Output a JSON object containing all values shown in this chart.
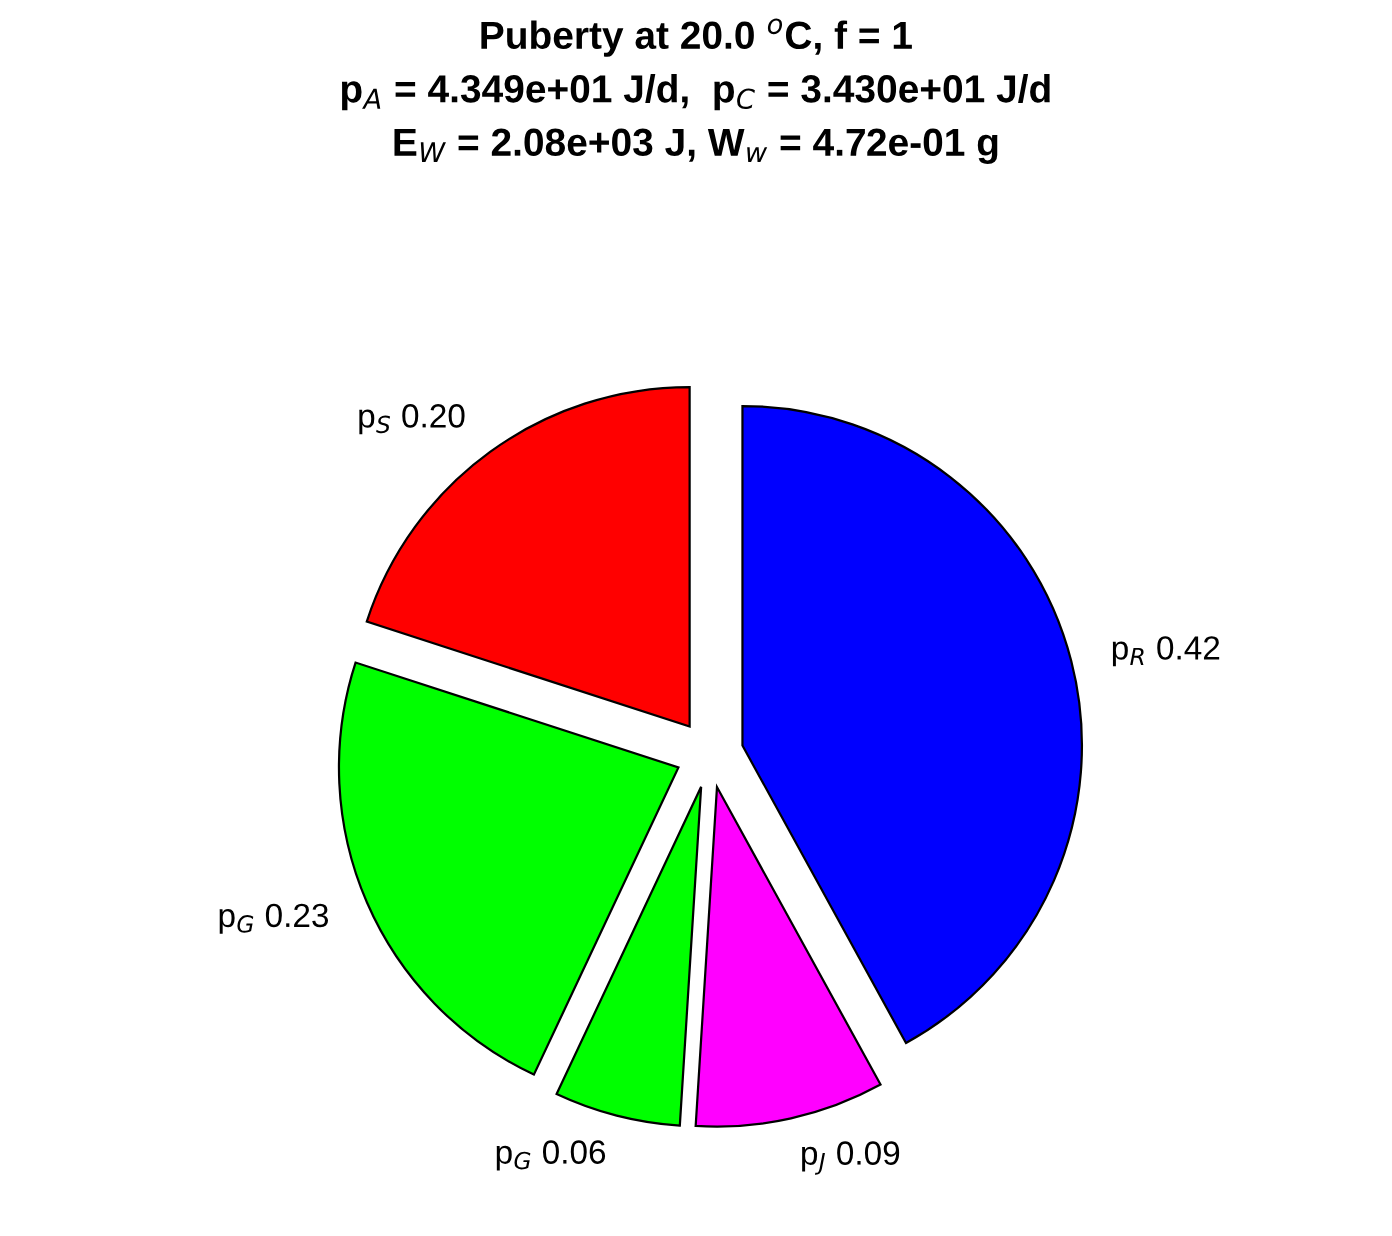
{
  "chart_data": {
    "type": "pie",
    "title": "Puberty at 20.0 $^{o}$C, f = 1\np$_{A}$ = 4.349e+01 J/d,  p$_{C}$ = 3.430e+01 J/d\nE$_{W}$ = 2.08e+03 J, W$_{w}$ = 4.72e-01 g",
    "categories": [
      "p$_{R}$",
      "p$_{J}$",
      "p$_{G}$",
      "p$_{G}$",
      "p$_{S}$"
    ],
    "values": [
      0.42,
      0.09,
      0.06,
      0.23,
      0.2
    ],
    "colors": [
      "#0000ff",
      "#ff00ff",
      "#00ff00",
      "#00ff00",
      "#ff0000"
    ],
    "value_labels": [
      "0.42",
      "0.09",
      "0.06",
      "0.23",
      "0.20"
    ]
  }
}
